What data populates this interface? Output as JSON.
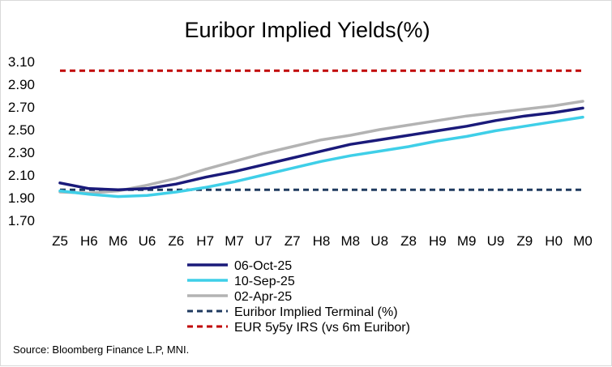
{
  "chart_data": {
    "type": "line",
    "title": "Euribor Implied Yields(%)",
    "xlabel": "",
    "ylabel": "",
    "categories": [
      "Z5",
      "H6",
      "M6",
      "U6",
      "Z6",
      "H7",
      "M7",
      "U7",
      "Z7",
      "H8",
      "M8",
      "U8",
      "Z8",
      "H9",
      "M9",
      "U9",
      "Z9",
      "H0",
      "M0"
    ],
    "y_ticks": [
      "3.10",
      "2.90",
      "2.70",
      "2.50",
      "2.30",
      "2.10",
      "1.90",
      "1.70"
    ],
    "ylim": [
      1.7,
      3.1
    ],
    "grid": false,
    "legend_position": "bottom",
    "series": [
      {
        "name": "06-Oct-25",
        "color": "#1a1a7a",
        "style": "solid",
        "values": [
          2.03,
          1.98,
          1.97,
          1.98,
          2.02,
          2.08,
          2.13,
          2.19,
          2.25,
          2.31,
          2.37,
          2.41,
          2.45,
          2.49,
          2.53,
          2.58,
          2.62,
          2.65,
          2.69
        ]
      },
      {
        "name": "10-Sep-25",
        "color": "#3fcfe8",
        "style": "solid",
        "values": [
          1.96,
          1.93,
          1.91,
          1.92,
          1.95,
          1.99,
          2.04,
          2.1,
          2.16,
          2.22,
          2.27,
          2.31,
          2.35,
          2.4,
          2.44,
          2.49,
          2.53,
          2.57,
          2.61
        ]
      },
      {
        "name": "02-Apr-25",
        "color": "#b3b3b3",
        "style": "solid",
        "values": [
          1.95,
          1.94,
          1.96,
          2.01,
          2.07,
          2.15,
          2.22,
          2.29,
          2.35,
          2.41,
          2.45,
          2.5,
          2.54,
          2.58,
          2.62,
          2.65,
          2.68,
          2.71,
          2.75
        ]
      },
      {
        "name": "Euribor Implied Terminal (%)",
        "color": "#1f3a5f",
        "style": "dashed",
        "values": [
          1.97,
          1.97,
          1.97,
          1.97,
          1.97,
          1.97,
          1.97,
          1.97,
          1.97,
          1.97,
          1.97,
          1.97,
          1.97,
          1.97,
          1.97,
          1.97,
          1.97,
          1.97,
          1.97
        ]
      },
      {
        "name": "EUR 5y5y IRS (vs 6m Euribor)",
        "color": "#c00000",
        "style": "dashed",
        "values": [
          3.02,
          3.02,
          3.02,
          3.02,
          3.02,
          3.02,
          3.02,
          3.02,
          3.02,
          3.02,
          3.02,
          3.02,
          3.02,
          3.02,
          3.02,
          3.02,
          3.02,
          3.02,
          3.02
        ]
      }
    ]
  },
  "source": "Source: Bloomberg Finance L.P, MNI."
}
